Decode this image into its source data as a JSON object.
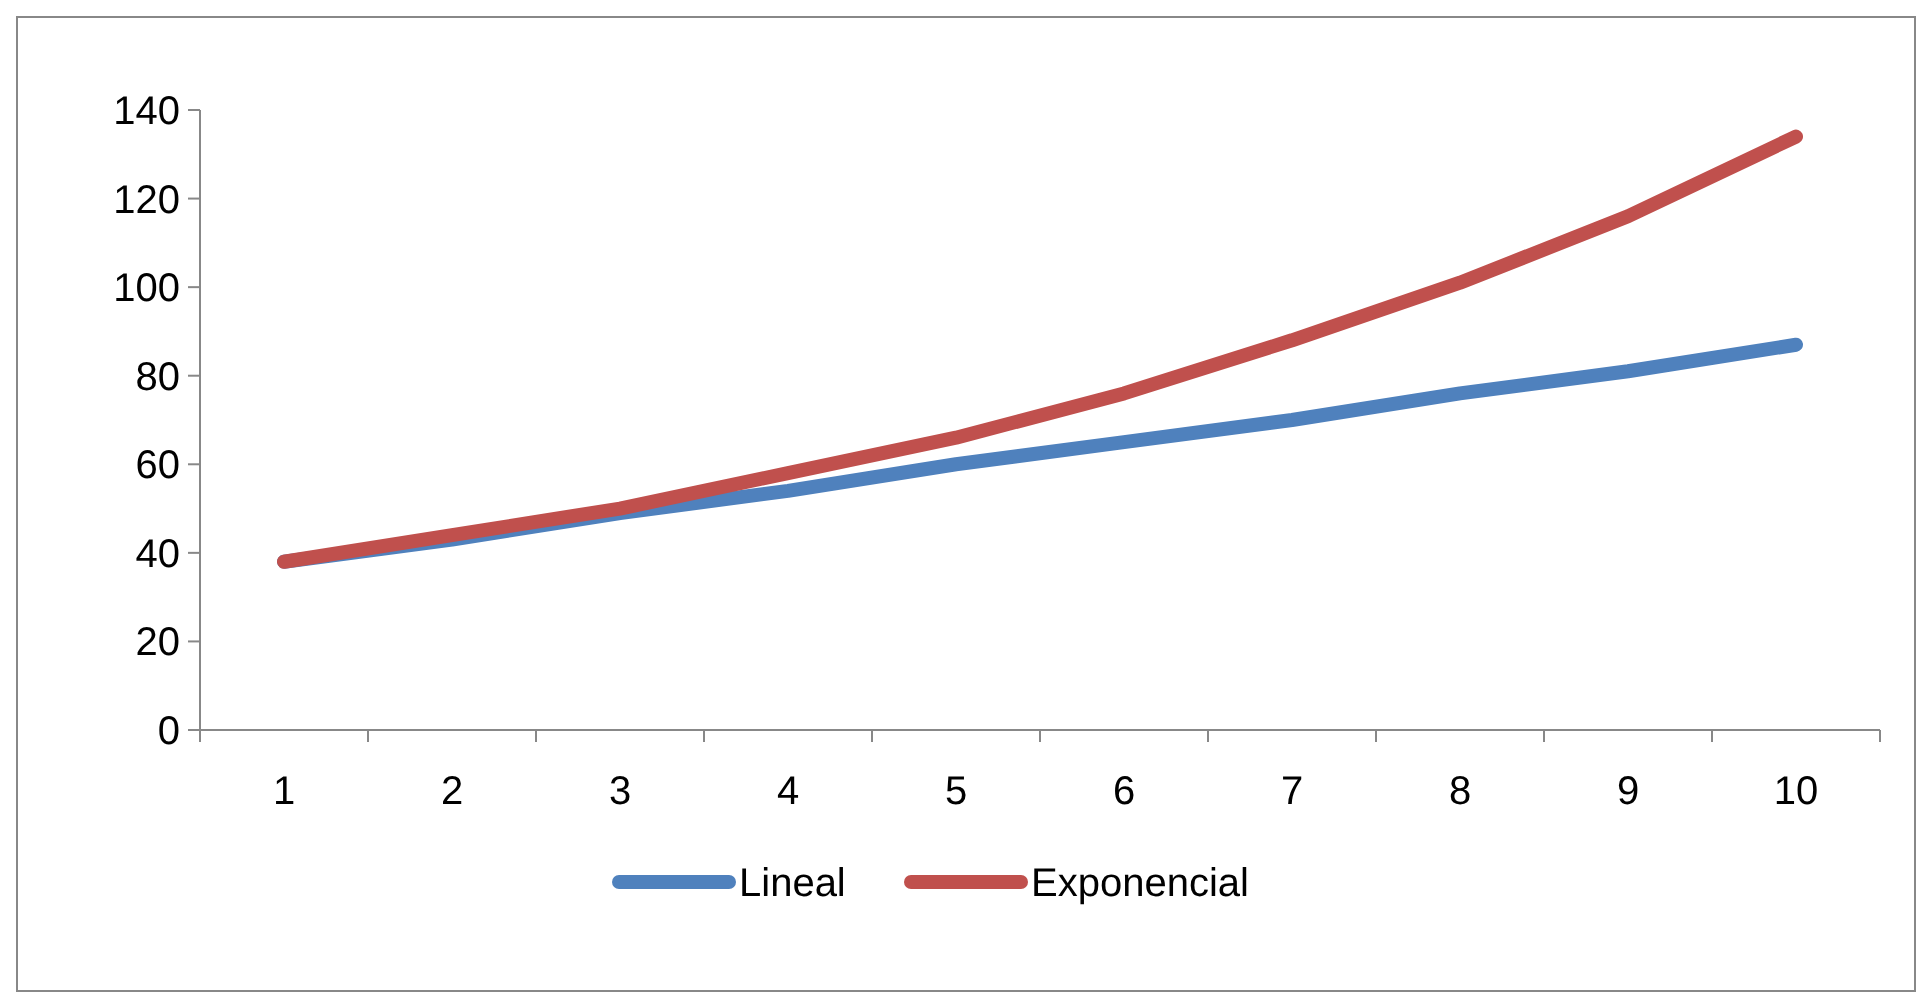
{
  "chart_data": {
    "type": "line",
    "categories": [
      "1",
      "2",
      "3",
      "4",
      "5",
      "6",
      "7",
      "8",
      "9",
      "10"
    ],
    "series": [
      {
        "name": "Lineal",
        "color": "#4f81bd",
        "values": [
          38,
          43,
          49,
          54,
          60,
          65,
          70,
          76,
          81,
          87
        ]
      },
      {
        "name": "Exponencial",
        "color": "#c0504d",
        "values": [
          38,
          44,
          50,
          58,
          66,
          76,
          88,
          101,
          116,
          134
        ]
      }
    ],
    "ylim": [
      0,
      140
    ],
    "yticks": [
      0,
      20,
      40,
      60,
      80,
      100,
      120,
      140
    ],
    "grid": false,
    "legend": "bottom",
    "line_style": "solid"
  }
}
